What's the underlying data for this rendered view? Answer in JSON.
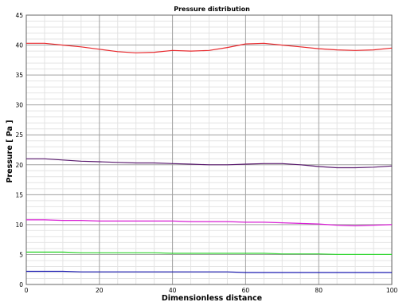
{
  "chart_data": {
    "type": "line",
    "title": "Pressure distribution",
    "xlabel": "Dimensionless distance",
    "ylabel": "Pressure [ Pa ]",
    "xlim": [
      0,
      100
    ],
    "ylim": [
      0,
      45
    ],
    "xticks": [
      "0",
      "20",
      "40",
      "60",
      "80",
      "100"
    ],
    "yticks": [
      "0",
      "5",
      "10",
      "15",
      "20",
      "25",
      "30",
      "35",
      "40",
      "45"
    ],
    "grid": true,
    "minor_grid": true,
    "legend": "none",
    "x": [
      0,
      5,
      10,
      15,
      20,
      25,
      30,
      35,
      40,
      45,
      50,
      55,
      60,
      65,
      70,
      75,
      80,
      85,
      90,
      95,
      100
    ],
    "series": [
      {
        "color": "#e8282c",
        "values": [
          40.3,
          40.3,
          40.0,
          39.7,
          39.3,
          38.9,
          38.7,
          38.8,
          39.1,
          39.0,
          39.1,
          39.6,
          40.2,
          40.3,
          40.0,
          39.7,
          39.4,
          39.2,
          39.1,
          39.2,
          39.5
        ]
      },
      {
        "color": "#5a1a6e",
        "values": [
          21.0,
          21.0,
          20.8,
          20.6,
          20.5,
          20.4,
          20.3,
          20.3,
          20.2,
          20.1,
          20.0,
          20.0,
          20.1,
          20.2,
          20.2,
          20.0,
          19.7,
          19.5,
          19.5,
          19.6,
          19.8
        ]
      },
      {
        "color": "#d81fd4",
        "values": [
          10.8,
          10.8,
          10.7,
          10.7,
          10.6,
          10.6,
          10.6,
          10.6,
          10.6,
          10.5,
          10.5,
          10.5,
          10.4,
          10.4,
          10.3,
          10.2,
          10.1,
          9.9,
          9.8,
          9.9,
          10.0
        ]
      },
      {
        "color": "#2ad42a",
        "values": [
          5.4,
          5.4,
          5.4,
          5.3,
          5.3,
          5.3,
          5.3,
          5.3,
          5.2,
          5.2,
          5.2,
          5.2,
          5.2,
          5.2,
          5.1,
          5.1,
          5.1,
          5.0,
          5.0,
          5.0,
          5.0
        ]
      },
      {
        "color": "#1a1ab0",
        "values": [
          2.2,
          2.2,
          2.2,
          2.1,
          2.1,
          2.1,
          2.1,
          2.1,
          2.1,
          2.1,
          2.1,
          2.1,
          2.0,
          2.0,
          2.0,
          2.0,
          2.0,
          2.0,
          2.0,
          2.0,
          2.0
        ]
      }
    ]
  }
}
